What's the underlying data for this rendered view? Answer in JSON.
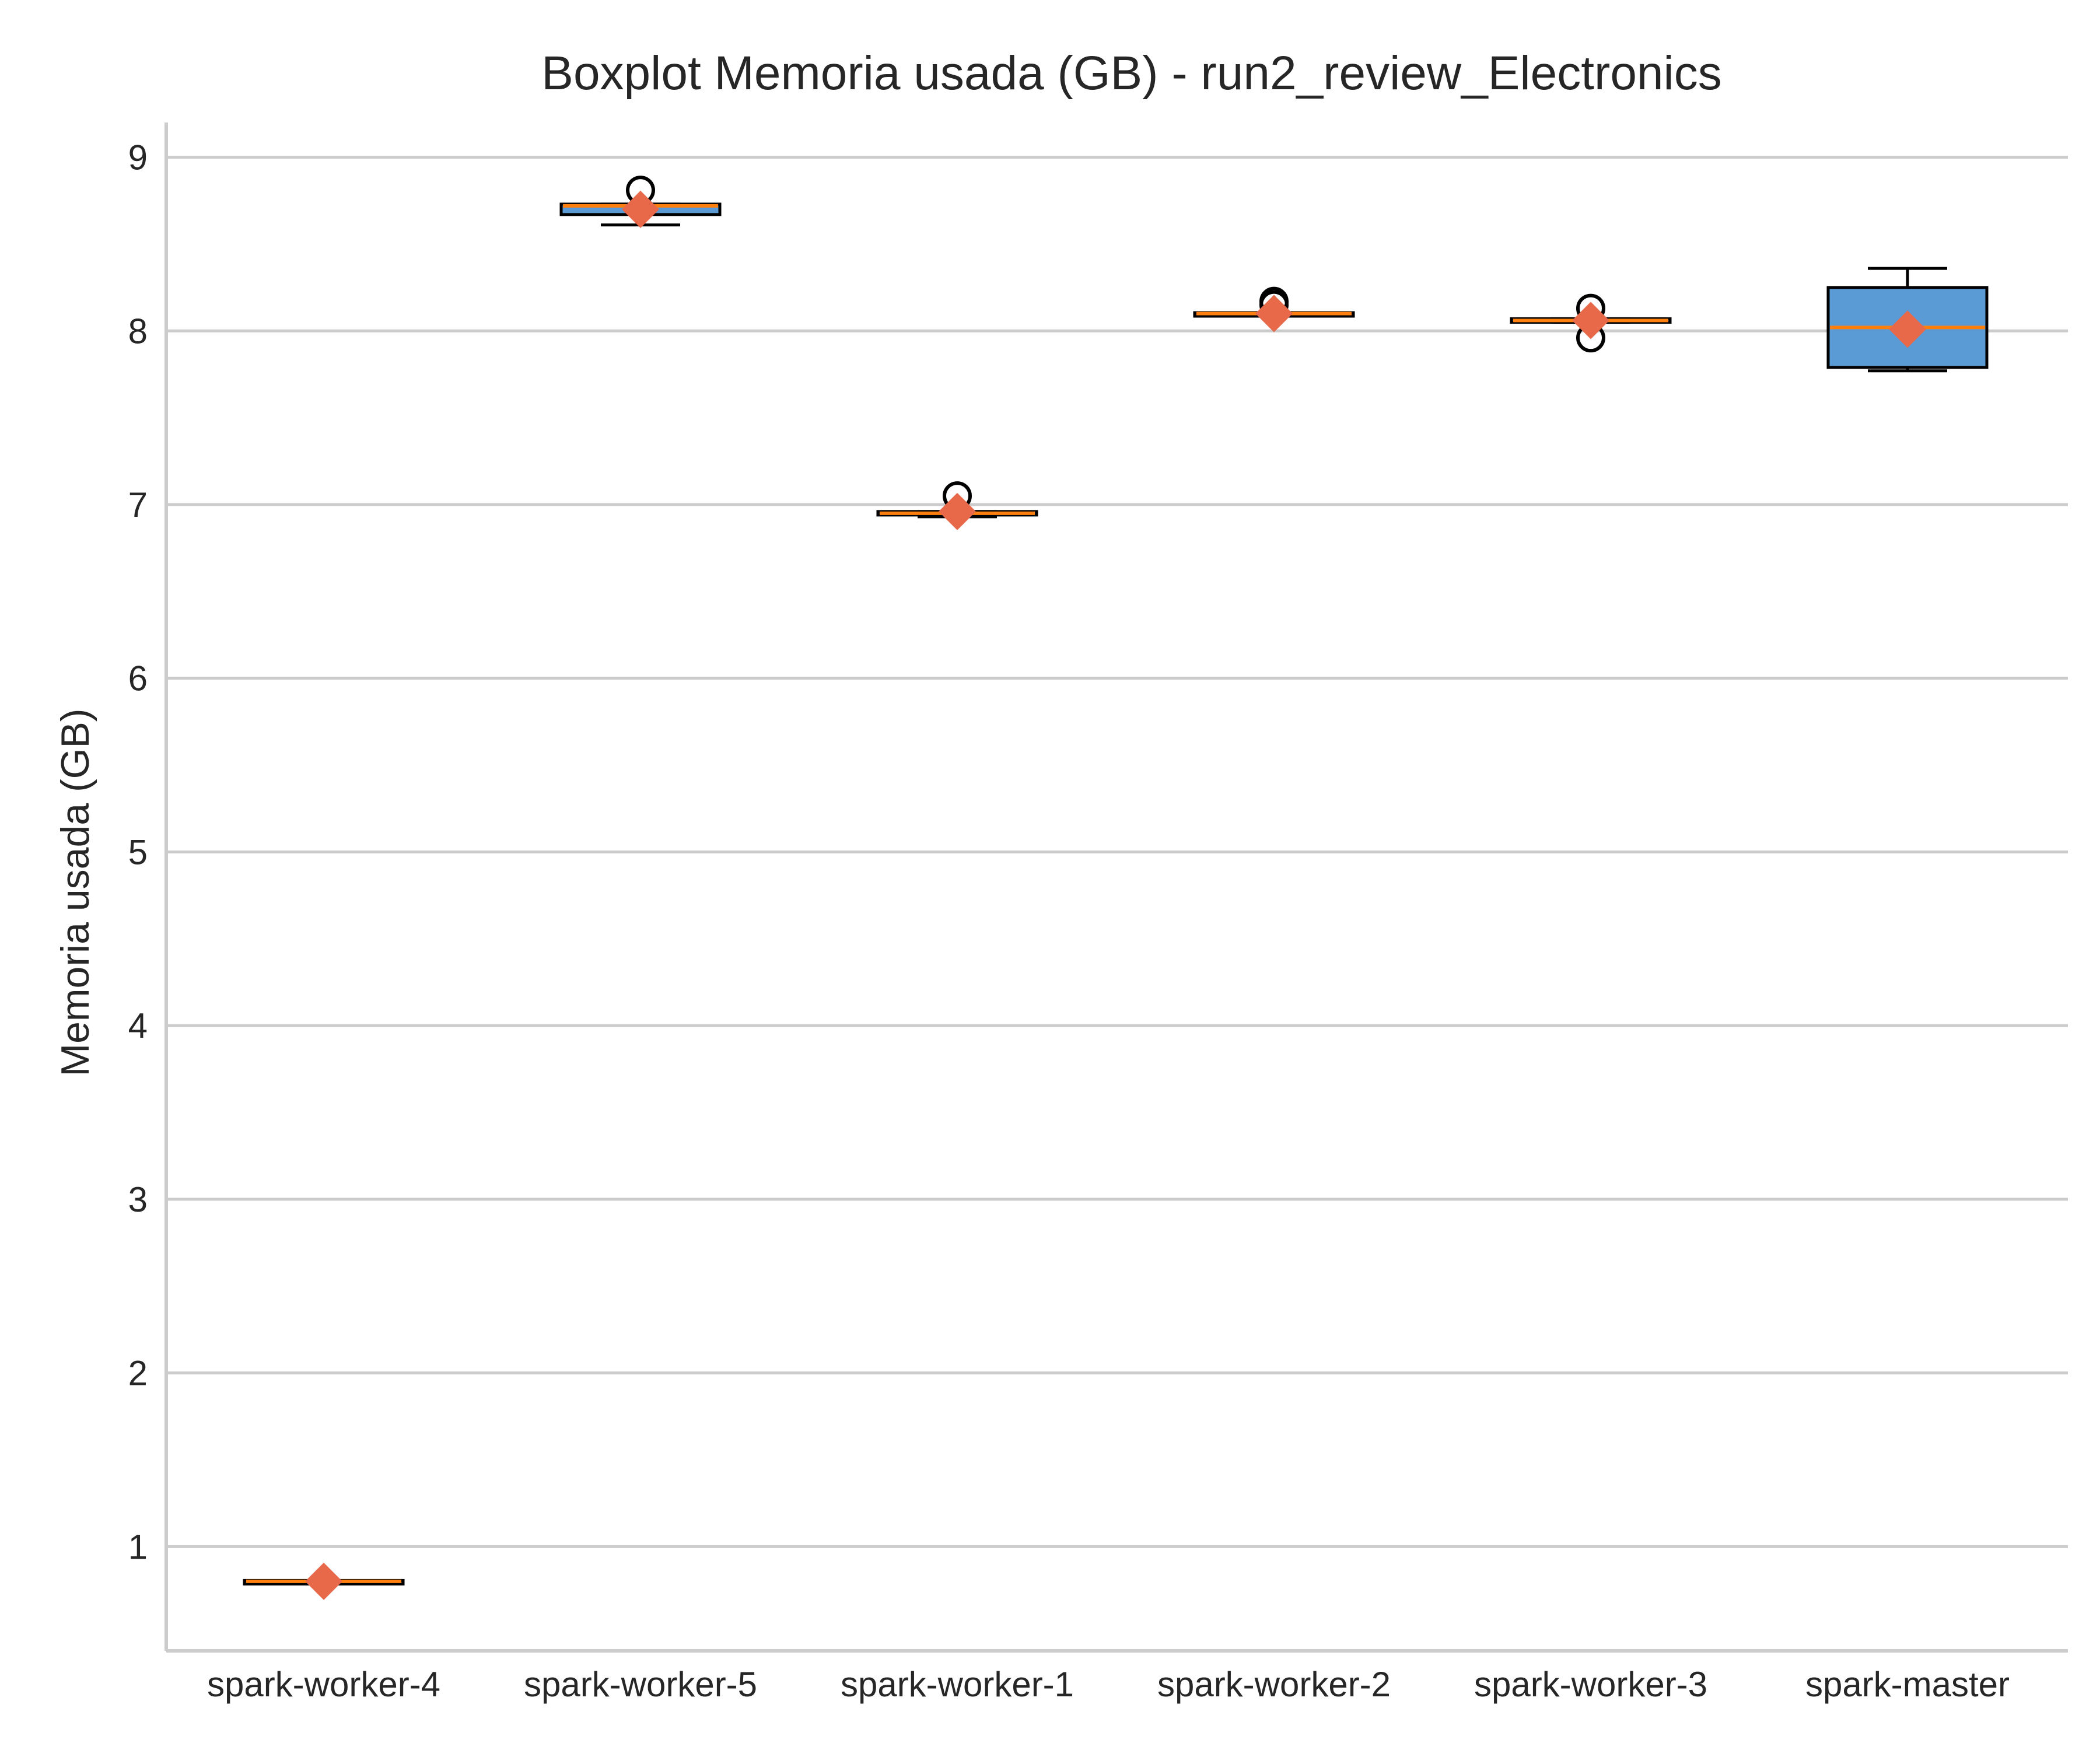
{
  "chart_data": {
    "type": "boxplot",
    "title": "Boxplot Memoria usada (GB) - run2_review_Electronics",
    "xlabel": "",
    "ylabel": "Memoria usada (GB)",
    "ylim": [
      0.4,
      9.2
    ],
    "yticks": [
      1,
      2,
      3,
      4,
      5,
      6,
      7,
      8,
      9
    ],
    "grid": "horizontal",
    "categories": [
      "spark-worker-4",
      "spark-worker-5",
      "spark-worker-1",
      "spark-worker-2",
      "spark-worker-3",
      "spark-master"
    ],
    "boxes": [
      {
        "whisker_low": 0.79,
        "q1": 0.79,
        "median": 0.8,
        "q3": 0.8,
        "whisker_high": 0.8,
        "mean": 0.8,
        "outliers": []
      },
      {
        "whisker_low": 8.61,
        "q1": 8.67,
        "median": 8.72,
        "q3": 8.73,
        "whisker_high": 8.73,
        "mean": 8.7,
        "outliers": [
          8.81
        ]
      },
      {
        "whisker_low": 6.93,
        "q1": 6.94,
        "median": 6.95,
        "q3": 6.96,
        "whisker_high": 6.96,
        "mean": 6.96,
        "outliers": [
          7.05
        ]
      },
      {
        "whisker_low": 8.09,
        "q1": 8.09,
        "median": 8.1,
        "q3": 8.1,
        "whisker_high": 8.1,
        "mean": 8.1,
        "outliers": [
          8.17,
          8.15
        ]
      },
      {
        "whisker_low": 8.05,
        "q1": 8.05,
        "median": 8.06,
        "q3": 8.07,
        "whisker_high": 8.07,
        "mean": 8.06,
        "outliers": [
          8.13,
          7.96
        ]
      },
      {
        "whisker_low": 7.77,
        "q1": 7.79,
        "median": 8.02,
        "q3": 8.25,
        "whisker_high": 8.36,
        "mean": 8.01,
        "outliers": []
      }
    ],
    "colors": {
      "box_fill": "#5b9bd5",
      "box_edge": "#000000",
      "median": "#ff7f0e",
      "mean_marker": "#e8694a",
      "grid": "#cccccc",
      "text": "#262626"
    }
  }
}
